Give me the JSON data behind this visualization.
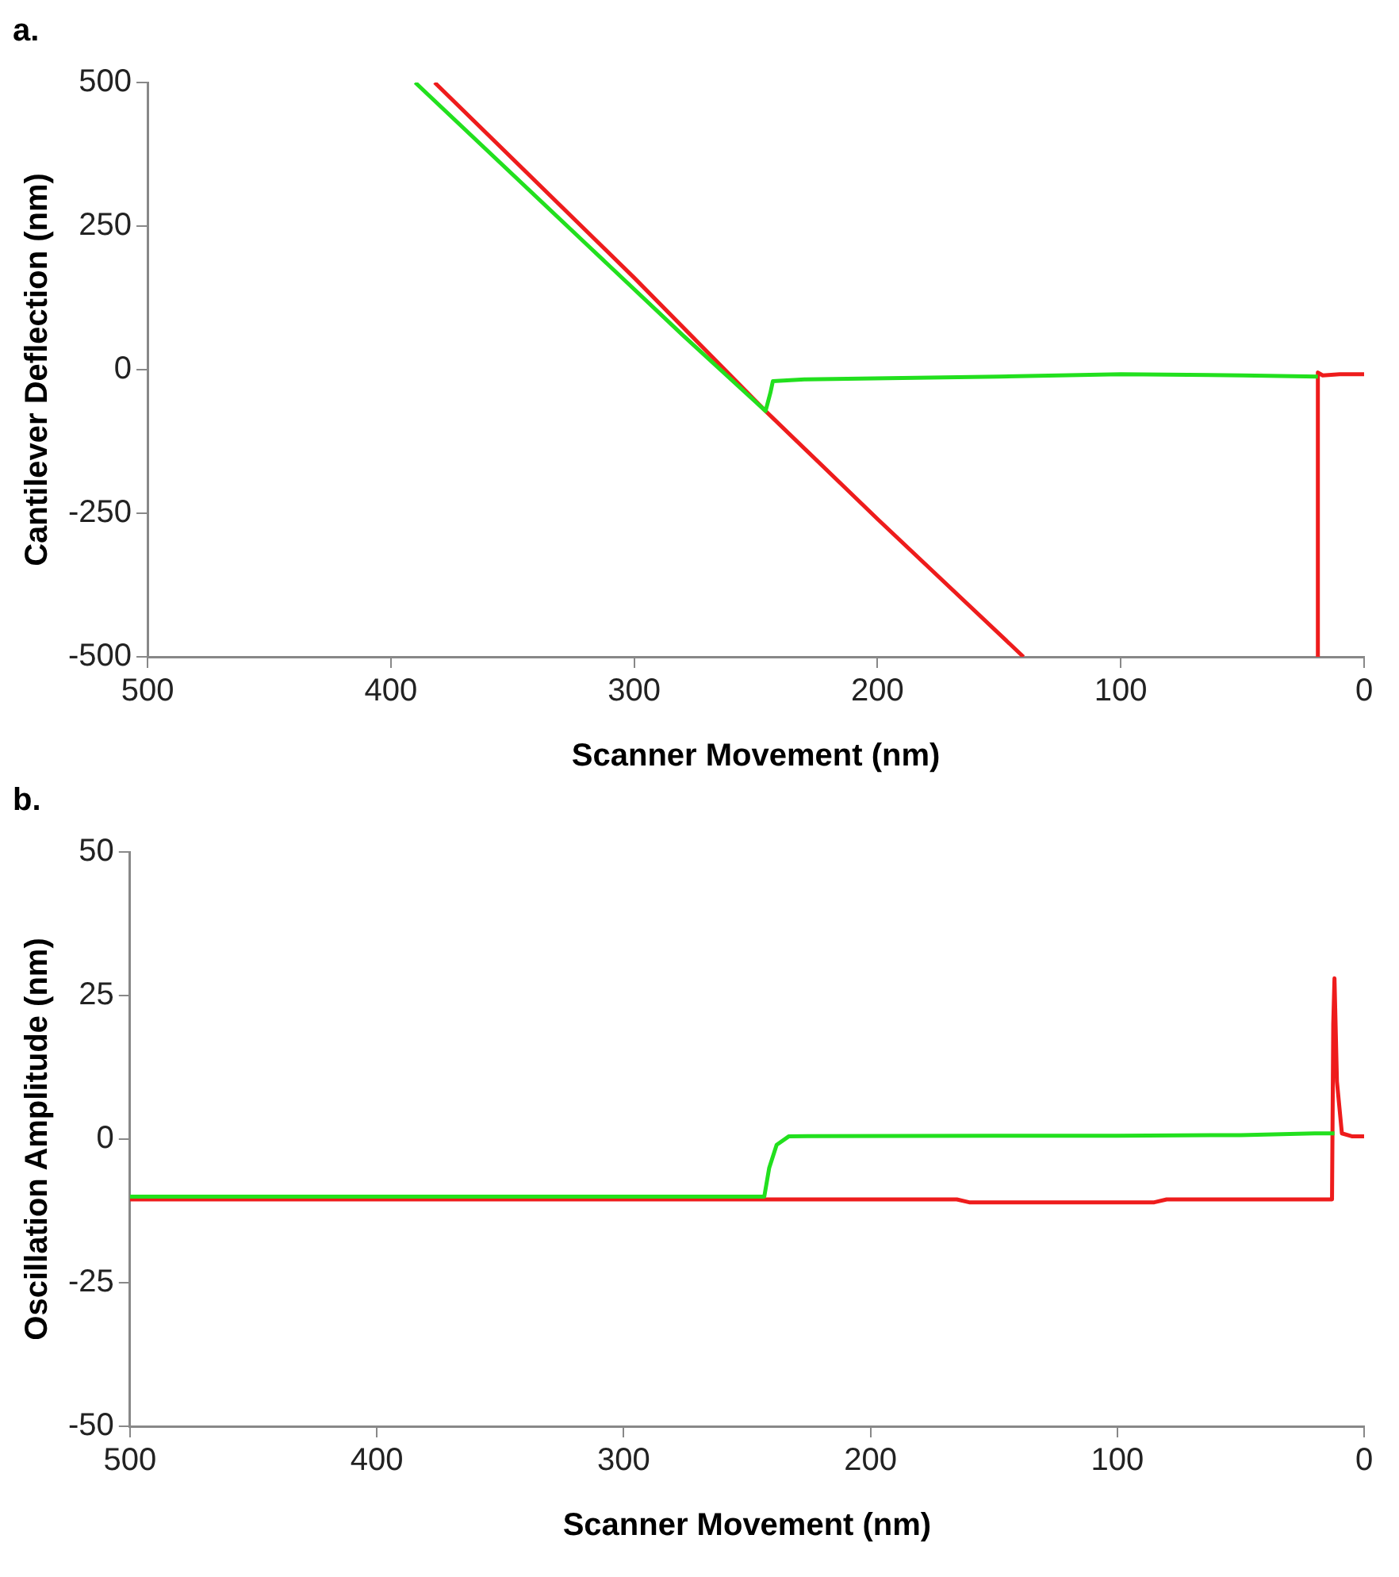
{
  "chart_data": [
    {
      "type": "line",
      "title": "a.",
      "xlabel": "Scanner Movement (nm)",
      "ylabel": "Cantilever Deflection (nm)",
      "xlim": [
        500,
        0
      ],
      "xticks": [
        500,
        400,
        300,
        200,
        100,
        0
      ],
      "ylim": [
        -500,
        500
      ],
      "yticks": [
        -500,
        -250,
        0,
        250,
        500
      ],
      "grid": false,
      "legend": false,
      "marker": "none",
      "line_style": "solid",
      "series": [
        {
          "color": "#22e01e",
          "x": [
            390,
            320,
            280,
            246,
            244,
            243,
            230,
            150,
            100,
            50,
            19
          ],
          "values": [
            500,
            220,
            60,
            -72,
            -40,
            -20,
            -17,
            -12,
            -8,
            -10,
            -12
          ]
        },
        {
          "color": "#ee1c1c",
          "x": [
            382,
            300,
            246,
            200,
            140,
            80,
            19,
            19,
            17,
            10,
            0
          ],
          "values": [
            500,
            160,
            -72,
            -260,
            -500,
            null,
            -500,
            -5,
            -10,
            -8,
            -8
          ]
        }
      ]
    },
    {
      "type": "line",
      "title": "b.",
      "xlabel": "Scanner Movement (nm)",
      "ylabel": "Oscillation Amplitude (nm)",
      "xlim": [
        500,
        0
      ],
      "xticks": [
        500,
        400,
        300,
        200,
        100,
        0
      ],
      "ylim": [
        -50,
        50
      ],
      "yticks": [
        -50,
        -25,
        0,
        25,
        50
      ],
      "grid": false,
      "legend": false,
      "marker": "none",
      "line_style": "solid",
      "series": [
        {
          "color": "#22e01e",
          "x": [
            500,
            400,
            300,
            243,
            241,
            238,
            233,
            150,
            100,
            50,
            20,
            12
          ],
          "values": [
            -10,
            -10,
            -10,
            -10,
            -5,
            -1,
            0.5,
            0.6,
            0.6,
            0.7,
            1,
            1
          ]
        },
        {
          "color": "#ee1c1c",
          "x": [
            500,
            400,
            300,
            200,
            165,
            160,
            85,
            80,
            20,
            13,
            12.5,
            12,
            11,
            9,
            5,
            0
          ],
          "values": [
            -10.5,
            -10.5,
            -10.5,
            -10.5,
            -10.5,
            -11,
            -11,
            -10.5,
            -10.5,
            -10.5,
            20,
            28,
            10,
            1,
            0.5,
            0.5
          ]
        }
      ]
    }
  ]
}
